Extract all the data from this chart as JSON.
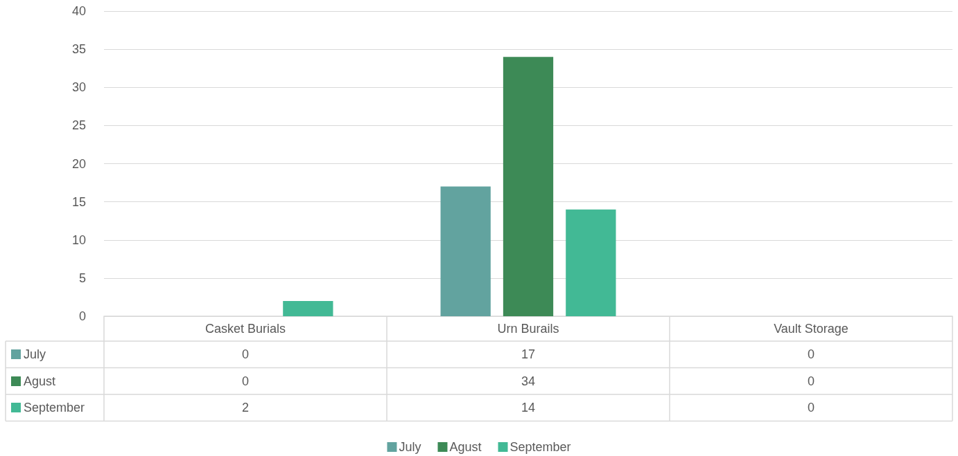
{
  "chart_data": {
    "type": "bar",
    "categories": [
      "Casket Burials",
      "Urn Burails",
      "Vault Storage"
    ],
    "series": [
      {
        "name": "July",
        "color": "#62a39f",
        "values": [
          0,
          17,
          0
        ]
      },
      {
        "name": "Agust",
        "color": "#3d8a56",
        "values": [
          0,
          34,
          0
        ]
      },
      {
        "name": "September",
        "color": "#42b995",
        "values": [
          2,
          14,
          0
        ]
      }
    ],
    "ylim": [
      0,
      40
    ],
    "yticks": [
      0,
      5,
      10,
      15,
      20,
      25,
      30,
      35,
      40
    ],
    "grid": "y",
    "legend": "bottom",
    "data_labels": true
  }
}
